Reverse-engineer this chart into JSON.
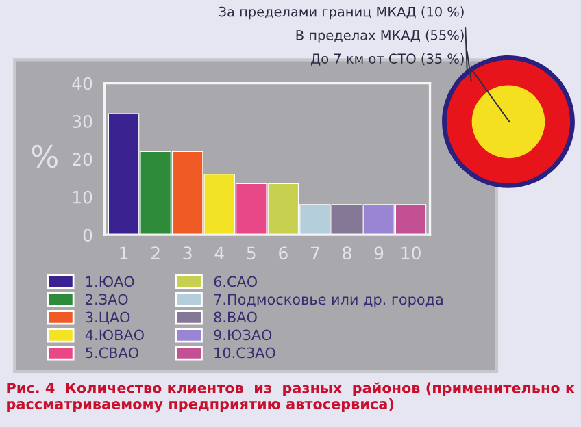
{
  "chart_data": [
    {
      "type": "bar",
      "ylabel": "%",
      "categories": [
        "1",
        "2",
        "3",
        "4",
        "5",
        "6",
        "7",
        "8",
        "9",
        "10"
      ],
      "series": [
        {
          "name": "1.ЮАО",
          "color": "#3a2290",
          "values": [
            32,
            null,
            null,
            null,
            null,
            null,
            null,
            null,
            null,
            null
          ]
        },
        {
          "name": "2.ЗАО",
          "color": "#2e8b3a",
          "values": [
            null,
            22,
            null,
            null,
            null,
            null,
            null,
            null,
            null,
            null
          ]
        },
        {
          "name": "3.ЦАО",
          "color": "#f05a24",
          "values": [
            null,
            null,
            22,
            null,
            null,
            null,
            null,
            null,
            null,
            null
          ]
        },
        {
          "name": "4.ЮВАО",
          "color": "#f2e424",
          "values": [
            null,
            null,
            null,
            16,
            null,
            null,
            null,
            null,
            null,
            null
          ]
        },
        {
          "name": "5.СВАО",
          "color": "#e84888",
          "values": [
            null,
            null,
            null,
            null,
            13.5,
            null,
            null,
            null,
            null,
            null
          ]
        },
        {
          "name": "6.САО",
          "color": "#c8d050",
          "values": [
            null,
            null,
            null,
            null,
            null,
            13.5,
            null,
            null,
            null,
            null
          ]
        },
        {
          "name": "7.Подмосковье или др. города",
          "color": "#b4cedc",
          "values": [
            null,
            null,
            null,
            null,
            null,
            null,
            8,
            null,
            null,
            null
          ]
        },
        {
          "name": "8.ВАО",
          "color": "#857896",
          "values": [
            null,
            null,
            null,
            null,
            null,
            null,
            null,
            8,
            null,
            null
          ]
        },
        {
          "name": "9.ЮЗАО",
          "color": "#9a84d4",
          "values": [
            null,
            null,
            null,
            null,
            null,
            null,
            null,
            null,
            8,
            null
          ]
        },
        {
          "name": "10.СЗАО",
          "color": "#c45094",
          "values": [
            null,
            null,
            null,
            null,
            null,
            null,
            null,
            null,
            null,
            8
          ]
        }
      ],
      "ylim": [
        0,
        40
      ],
      "yticks": [
        0,
        10,
        20,
        30,
        40
      ],
      "grid": false,
      "legend": "bottom",
      "annotations": [
        "Рис. 4  Количество клиентов  из  разных  районов (применительно к рассматриваемому предприятию автосервиса)"
      ]
    },
    {
      "type": "other",
      "annotations": [
        "За пределами границ МКАД (10 %)",
        "В пределах МКАД (55%)",
        "До 7 км от СТО (35 %)"
      ]
    }
  ]
}
